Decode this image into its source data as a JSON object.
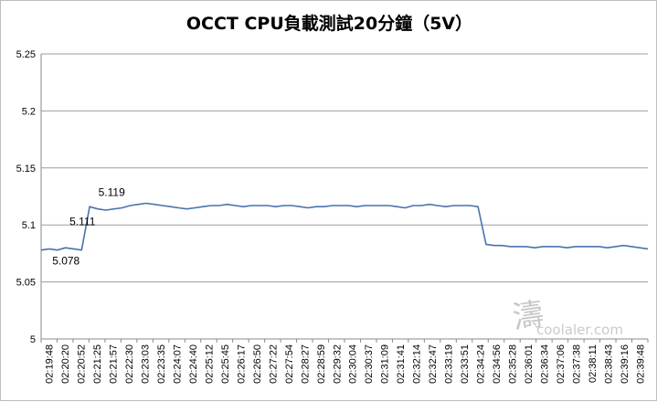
{
  "chart_data": {
    "type": "line",
    "title": "OCCT CPU負載測試20分鐘（5V）",
    "xlabel": "",
    "ylabel": "",
    "ylim": [
      5,
      5.25
    ],
    "yticks": [
      "5",
      "5.05",
      "5.1",
      "5.15",
      "5.2",
      "5.25"
    ],
    "grid": "horizontal",
    "legend": "none",
    "line_color": "#4a72ad",
    "x_tick_labels": [
      "02:19:48",
      "02:20:20",
      "02:20:52",
      "02:21:25",
      "02:21:57",
      "02:22:30",
      "02:23:03",
      "02:23:35",
      "02:24:07",
      "02:24:40",
      "02:25:12",
      "02:25:45",
      "02:26:17",
      "02:26:50",
      "02:27:22",
      "02:27:54",
      "02:28:27",
      "02:28:59",
      "02:29:32",
      "02:30:04",
      "02:30:37",
      "02:31:09",
      "02:31:41",
      "02:32:14",
      "02:32:47",
      "02:33:19",
      "02:33:51",
      "02:34:24",
      "02:34:56",
      "02:35:28",
      "02:36:01",
      "02:36:34",
      "02:37:06",
      "02:37:38",
      "02:38:11",
      "02:38:43",
      "02:39:16",
      "02:39:48"
    ],
    "series": [
      {
        "values": [
          5.078,
          5.079,
          5.078,
          5.08,
          5.079,
          5.078,
          5.116,
          5.114,
          5.113,
          5.114,
          5.115,
          5.117,
          5.118,
          5.119,
          5.118,
          5.117,
          5.116,
          5.115,
          5.114,
          5.115,
          5.116,
          5.117,
          5.117,
          5.118,
          5.117,
          5.116,
          5.117,
          5.117,
          5.117,
          5.116,
          5.117,
          5.117,
          5.116,
          5.115,
          5.116,
          5.116,
          5.117,
          5.117,
          5.117,
          5.116,
          5.117,
          5.117,
          5.117,
          5.117,
          5.116,
          5.115,
          5.117,
          5.117,
          5.118,
          5.117,
          5.116,
          5.117,
          5.117,
          5.117,
          5.116,
          5.083,
          5.082,
          5.082,
          5.081,
          5.081,
          5.081,
          5.08,
          5.081,
          5.081,
          5.081,
          5.08,
          5.081,
          5.081,
          5.081,
          5.081,
          5.08,
          5.081,
          5.082,
          5.081,
          5.08,
          5.079
        ]
      }
    ],
    "annotations": [
      {
        "text": "5.078",
        "x": "02:20:20",
        "y": 5.078
      },
      {
        "text": "5.111",
        "x": "02:21:25",
        "y": 5.111
      },
      {
        "text": "5.119",
        "x": "02:21:57",
        "y": 5.119
      }
    ]
  },
  "watermark": {
    "text": "coolaler.com",
    "glyph": "濤"
  }
}
